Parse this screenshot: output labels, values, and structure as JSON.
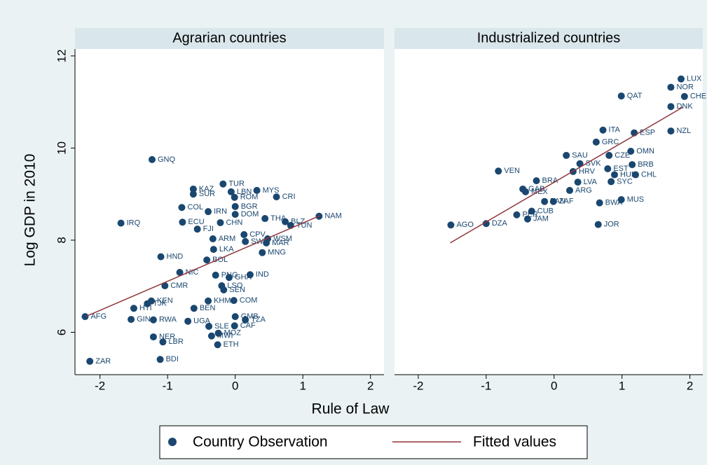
{
  "axes": {
    "xlabel": "Rule of Law",
    "ylabel": "Log GDP in 2010"
  },
  "chart_data": [
    {
      "type": "scatter",
      "title": "Agrarian countries",
      "xlim": [
        -2.37,
        2.2
      ],
      "ylim": [
        5.08,
        12.15
      ],
      "xticks": [
        -2,
        -1,
        0,
        1,
        2
      ],
      "yticks": [
        6,
        8,
        10,
        12
      ],
      "series": [
        {
          "name": "Country Observation",
          "style": "marker",
          "color": "#1a476f",
          "labels": [
            "GNQ",
            "KAZ",
            "SUR",
            "TUR",
            "LBN",
            "MYS",
            "CRI",
            "ROM",
            "BGR",
            "IRN",
            "DOM",
            "THA",
            "BLZ",
            "TUN",
            "NAM",
            "COL",
            "IRQ",
            "ECU",
            "CHN",
            "FJI",
            "CPV",
            "ARM",
            "WSM",
            "SWZ",
            "MAR",
            "MNG",
            "HND",
            "LKA",
            "BOL",
            "IND",
            "NIC",
            "PNG",
            "GHA",
            "LSO",
            "CMR",
            "SEN",
            "KEN",
            "TJK",
            "HTI",
            "COM",
            "KHM",
            "BEN",
            "AFG",
            "GIN",
            "RWA",
            "UGA",
            "GMB",
            "TZA",
            "SLE",
            "CAF",
            "MOZ",
            "MWI",
            "NER",
            "LBR",
            "ETH",
            "BDI",
            "ZAR"
          ],
          "x": [
            -1.23,
            -0.62,
            -0.62,
            -0.18,
            -0.06,
            0.32,
            0.61,
            -0.01,
            0.0,
            -0.4,
            0.0,
            0.44,
            0.74,
            0.82,
            1.24,
            -0.79,
            -1.69,
            -0.78,
            -0.22,
            -0.56,
            0.13,
            -0.33,
            0.48,
            0.15,
            0.46,
            0.4,
            -1.1,
            -0.32,
            -0.42,
            0.22,
            -0.82,
            -0.29,
            -0.09,
            -0.2,
            -1.04,
            -0.17,
            -1.24,
            -1.3,
            -1.5,
            -0.02,
            -0.4,
            -0.61,
            -2.22,
            -1.54,
            -1.21,
            -0.7,
            0.0,
            0.15,
            -0.39,
            -0.01,
            -0.25,
            -0.35,
            -1.21,
            -1.07,
            -0.26,
            -1.11,
            -2.15
          ],
          "y": [
            9.75,
            9.11,
            9.0,
            9.22,
            9.05,
            9.08,
            8.94,
            8.93,
            8.73,
            8.62,
            8.56,
            8.47,
            8.4,
            8.32,
            8.52,
            8.71,
            8.37,
            8.39,
            8.38,
            8.24,
            8.12,
            8.03,
            8.03,
            7.97,
            7.94,
            7.73,
            7.64,
            7.8,
            7.57,
            7.25,
            7.3,
            7.24,
            7.19,
            7.01,
            7.01,
            6.92,
            6.68,
            6.62,
            6.52,
            6.69,
            6.68,
            6.52,
            6.34,
            6.28,
            6.27,
            6.24,
            6.34,
            6.27,
            6.13,
            6.14,
            5.98,
            5.92,
            5.9,
            5.79,
            5.73,
            5.41,
            5.37
          ]
        },
        {
          "name": "Fitted values",
          "style": "line",
          "color": "#90353b",
          "x": [
            -2.2,
            1.25
          ],
          "y": [
            6.35,
            8.53
          ]
        }
      ]
    },
    {
      "type": "scatter",
      "title": "Industrialized countries",
      "xlim": [
        -2.35,
        2.19
      ],
      "ylim": [
        5.08,
        12.15
      ],
      "xticks": [
        -2,
        -1,
        0,
        1,
        2
      ],
      "series": [
        {
          "style": "marker",
          "color": "#1a476f",
          "labels": [
            "LUX",
            "NOR",
            "CHE",
            "QAT",
            "DNK",
            "NZL",
            "ITA",
            "ESP",
            "GRC",
            "OMN",
            "SAU",
            "CZE",
            "SVK",
            "BRB",
            "VEN",
            "EST",
            "HRV",
            "HUN",
            "CHL",
            "BRA",
            "SYC",
            "LVA",
            "GAB",
            "MEX",
            "ARG",
            "PAN",
            "ZAF",
            "MUS",
            "BWA",
            "CUB",
            "PER",
            "JAM",
            "JOR",
            "AGO",
            "DZA"
          ],
          "x": [
            1.87,
            1.72,
            1.92,
            0.99,
            1.72,
            1.72,
            0.72,
            1.18,
            0.62,
            1.13,
            0.18,
            0.81,
            0.38,
            1.15,
            -0.82,
            0.79,
            0.28,
            0.89,
            1.2,
            -0.26,
            0.84,
            0.35,
            -0.46,
            -0.42,
            0.23,
            -0.14,
            -0.01,
            0.99,
            0.67,
            -0.33,
            -0.55,
            -0.39,
            0.65,
            -1.52,
            -1.0
          ],
          "y": [
            11.5,
            11.32,
            11.12,
            11.13,
            10.9,
            10.37,
            10.39,
            10.33,
            10.13,
            9.93,
            9.84,
            9.84,
            9.66,
            9.64,
            9.5,
            9.55,
            9.49,
            9.42,
            9.42,
            9.29,
            9.27,
            9.26,
            9.11,
            9.05,
            9.08,
            8.84,
            8.84,
            8.88,
            8.81,
            8.63,
            8.55,
            8.46,
            8.34,
            8.33,
            8.36
          ]
        },
        {
          "style": "line",
          "color": "#90353b",
          "x": [
            -1.53,
            1.9
          ],
          "y": [
            7.94,
            10.89
          ]
        }
      ]
    }
  ]
}
